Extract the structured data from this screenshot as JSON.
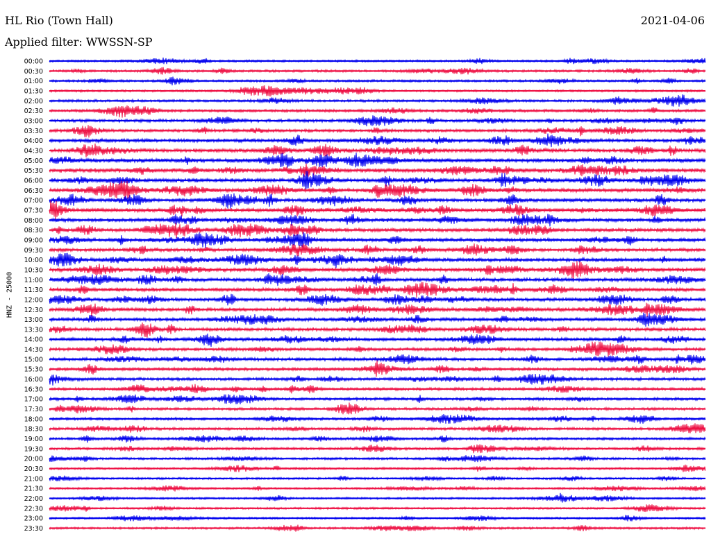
{
  "header": {
    "station": "HL Rio (Town Hall)",
    "date": "2021-04-06",
    "filter": "Applied filter: WWSSN-SP",
    "channel": "HNZ - 25000"
  },
  "colors": {
    "blue": "#0000ee",
    "red": "#ee1144"
  },
  "chart_data": {
    "type": "line",
    "title": "HL Rio (Town Hall)",
    "subtitle": "Applied filter: WWSSN-SP",
    "ylabel": "HNZ - 25000",
    "row_labels": [
      "00:00",
      "00:30",
      "01:00",
      "01:30",
      "02:00",
      "02:30",
      "03:00",
      "03:30",
      "04:00",
      "04:30",
      "05:00",
      "05:30",
      "06:00",
      "06:30",
      "07:00",
      "07:30",
      "08:00",
      "08:30",
      "09:00",
      "09:30",
      "10:00",
      "10:30",
      "11:00",
      "11:30",
      "12:00",
      "12:30",
      "13:00",
      "13:30",
      "14:00",
      "14:30",
      "15:00",
      "15:30",
      "16:00",
      "16:30",
      "17:00",
      "17:30",
      "18:00",
      "18:30",
      "19:00",
      "19:30",
      "20:00",
      "20:30",
      "21:00",
      "21:30",
      "22:00",
      "22:30",
      "23:00",
      "23:30"
    ],
    "row_colors": [
      "blue",
      "red"
    ],
    "trace_activity": [
      0.35,
      0.4,
      0.4,
      0.35,
      0.45,
      0.55,
      0.6,
      0.65,
      0.8,
      0.95,
      0.95,
      1.0,
      0.9,
      0.9,
      0.85,
      0.9,
      0.85,
      0.85,
      0.8,
      0.8,
      0.85,
      0.85,
      0.85,
      0.8,
      0.8,
      0.8,
      0.75,
      0.75,
      0.7,
      0.65,
      0.7,
      0.6,
      0.6,
      0.55,
      0.55,
      0.5,
      0.5,
      0.5,
      0.45,
      0.45,
      0.4,
      0.35,
      0.3,
      0.3,
      0.3,
      0.3,
      0.3,
      0.35
    ]
  }
}
